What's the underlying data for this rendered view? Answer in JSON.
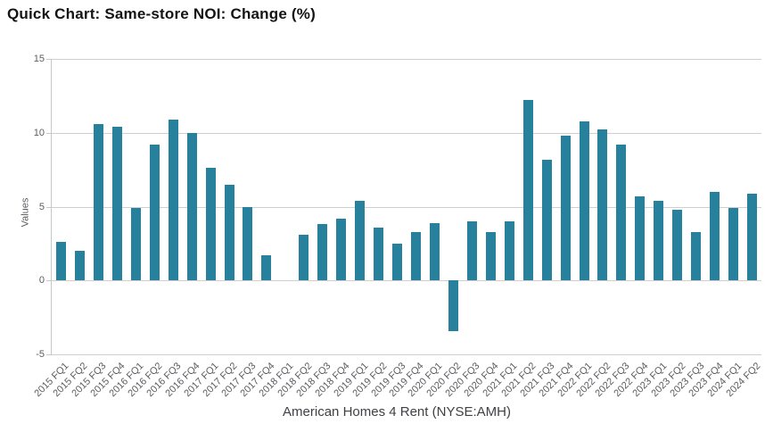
{
  "page": {
    "title": "Quick Chart: Same-store NOI: Change (%)",
    "footer": "American Homes 4 Rent (NYSE:AMH)"
  },
  "chart_data": {
    "type": "bar",
    "title": "Quick Chart: Same-store NOI: Change (%)",
    "subtitle": "American Homes 4 Rent (NYSE:AMH)",
    "xlabel": "",
    "ylabel": "Values",
    "ylim": [
      -5,
      15
    ],
    "yticks": [
      15,
      10,
      5,
      0,
      -5
    ],
    "grid": true,
    "legend": false,
    "bar_color": "#27819c",
    "categories": [
      "2015 FQ1",
      "2015 FQ2",
      "2015 FQ3",
      "2015 FQ4",
      "2016 FQ1",
      "2016 FQ2",
      "2016 FQ3",
      "2016 FQ4",
      "2017 FQ1",
      "2017 FQ2",
      "2017 FQ3",
      "2017 FQ4",
      "2018 FQ1",
      "2018 FQ2",
      "2018 FQ3",
      "2018 FQ4",
      "2019 FQ1",
      "2019 FQ2",
      "2019 FQ3",
      "2019 FQ4",
      "2020 FQ1",
      "2020 FQ2",
      "2020 FQ3",
      "2020 FQ4",
      "2021 FQ1",
      "2021 FQ2",
      "2021 FQ3",
      "2021 FQ4",
      "2022 FQ1",
      "2022 FQ2",
      "2022 FQ3",
      "2022 FQ4",
      "2023 FQ1",
      "2023 FQ2",
      "2023 FQ3",
      "2023 FQ4",
      "2024 FQ1",
      "2024 FQ2"
    ],
    "values": [
      2.6,
      2.0,
      10.6,
      10.4,
      4.9,
      9.2,
      10.9,
      10.0,
      7.6,
      6.5,
      5.0,
      1.7,
      null,
      3.1,
      3.8,
      4.2,
      5.4,
      3.6,
      2.5,
      3.3,
      3.9,
      -3.4,
      4.0,
      3.3,
      4.0,
      12.2,
      8.2,
      9.8,
      10.8,
      10.2,
      9.2,
      5.7,
      5.4,
      4.8,
      3.3,
      6.0,
      4.9,
      5.9
    ]
  }
}
